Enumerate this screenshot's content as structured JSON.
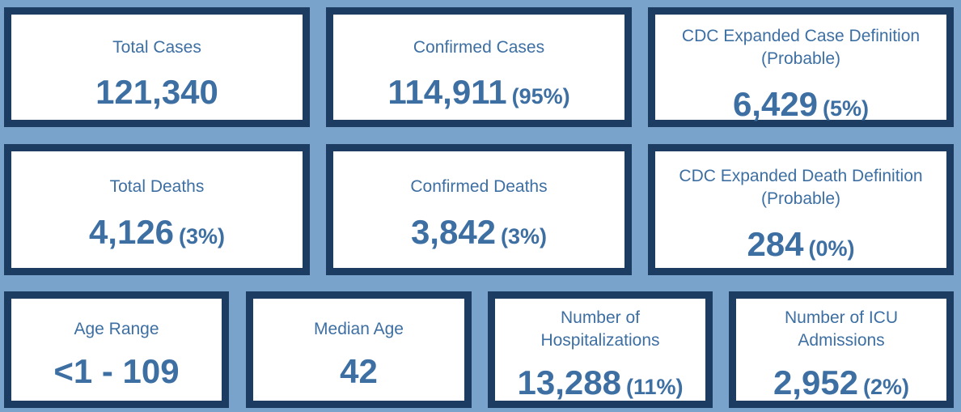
{
  "cards": [
    {
      "label": "Total Cases",
      "value": "121,340",
      "pct": ""
    },
    {
      "label": "Confirmed Cases",
      "value": "114,911",
      "pct": "(95%)"
    },
    {
      "label_line1": "CDC Expanded Case Definition",
      "label_line2": "(Probable)",
      "value": "6,429",
      "pct": "(5%)"
    },
    {
      "label": "Total Deaths",
      "value": "4,126",
      "pct": "(3%)"
    },
    {
      "label": "Confirmed Deaths",
      "value": "3,842",
      "pct": "(3%)"
    },
    {
      "label_line1": "CDC Expanded Death Definition",
      "label_line2": "(Probable)",
      "value": "284",
      "pct": "(0%)"
    },
    {
      "label": "Age Range",
      "value": "<1 - 109"
    },
    {
      "label": "Median Age",
      "value": "42"
    },
    {
      "label_line1": "Number of",
      "label_line2": "Hospitalizations",
      "value": "13,288",
      "pct": "(11%)"
    },
    {
      "label_line1": "Number of ICU",
      "label_line2": "Admissions",
      "value": "2,952",
      "pct": "(2%)"
    }
  ],
  "colors": {
    "background": "#7aa3cb",
    "border": "#1d3c62",
    "text": "#3d6fa3",
    "card": "#ffffff"
  }
}
